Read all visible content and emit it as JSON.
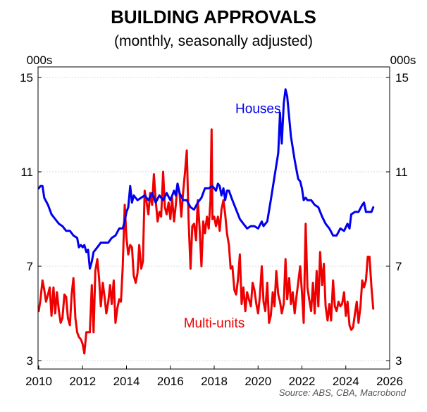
{
  "chart_data": {
    "type": "line",
    "title": "BUILDING APPROVALS",
    "subtitle": "(monthly, seasonally adjusted)",
    "ylabel_left": "000s",
    "ylabel_right": "000s",
    "source": "Source: ABS, CBA, Macrobond",
    "xlim": [
      2010,
      2026
    ],
    "ylim": [
      3,
      15
    ],
    "x_ticks": [
      2010,
      2012,
      2014,
      2016,
      2018,
      2020,
      2022,
      2024,
      2026
    ],
    "y_ticks": [
      3,
      7,
      11,
      15
    ],
    "grid": true,
    "series": [
      {
        "name": "Houses",
        "color": "#0000ee",
        "points": [
          [
            2010.0,
            10.3
          ],
          [
            2010.08,
            10.4
          ],
          [
            2010.17,
            10.4
          ],
          [
            2010.25,
            9.9
          ],
          [
            2010.42,
            9.6
          ],
          [
            2010.58,
            9.2
          ],
          [
            2010.75,
            9.0
          ],
          [
            2010.92,
            8.8
          ],
          [
            2011.08,
            8.7
          ],
          [
            2011.25,
            8.5
          ],
          [
            2011.42,
            8.5
          ],
          [
            2011.58,
            8.3
          ],
          [
            2011.75,
            8.2
          ],
          [
            2011.83,
            7.8
          ],
          [
            2011.92,
            7.9
          ],
          [
            2012.0,
            7.8
          ],
          [
            2012.08,
            7.9
          ],
          [
            2012.17,
            7.6
          ],
          [
            2012.25,
            7.7
          ],
          [
            2012.33,
            6.9
          ],
          [
            2012.42,
            7.2
          ],
          [
            2012.5,
            7.6
          ],
          [
            2012.67,
            7.8
          ],
          [
            2012.83,
            8.0
          ],
          [
            2013.0,
            8.0
          ],
          [
            2013.17,
            8.0
          ],
          [
            2013.33,
            8.2
          ],
          [
            2013.5,
            8.3
          ],
          [
            2013.67,
            8.6
          ],
          [
            2013.83,
            8.6
          ],
          [
            2013.92,
            8.9
          ],
          [
            2014.0,
            9.3
          ],
          [
            2014.08,
            9.5
          ],
          [
            2014.17,
            10.4
          ],
          [
            2014.25,
            9.7
          ],
          [
            2014.33,
            10.0
          ],
          [
            2014.5,
            9.8
          ],
          [
            2014.67,
            9.9
          ],
          [
            2014.83,
            10.0
          ],
          [
            2015.0,
            9.8
          ],
          [
            2015.17,
            10.1
          ],
          [
            2015.33,
            9.7
          ],
          [
            2015.5,
            10.0
          ],
          [
            2015.67,
            9.8
          ],
          [
            2015.83,
            10.1
          ],
          [
            2016.0,
            9.8
          ],
          [
            2016.17,
            10.2
          ],
          [
            2016.25,
            10.0
          ],
          [
            2016.33,
            10.5
          ],
          [
            2016.42,
            10.1
          ],
          [
            2016.58,
            9.8
          ],
          [
            2016.75,
            9.8
          ],
          [
            2016.92,
            9.5
          ],
          [
            2017.08,
            9.4
          ],
          [
            2017.25,
            9.7
          ],
          [
            2017.42,
            9.9
          ],
          [
            2017.58,
            10.3
          ],
          [
            2017.75,
            10.3
          ],
          [
            2017.92,
            10.4
          ],
          [
            2018.08,
            10.2
          ],
          [
            2018.17,
            10.5
          ],
          [
            2018.25,
            10.4
          ],
          [
            2018.33,
            10.0
          ],
          [
            2018.42,
            10.3
          ],
          [
            2018.5,
            9.8
          ],
          [
            2018.58,
            10.2
          ],
          [
            2018.67,
            10.2
          ],
          [
            2018.83,
            9.8
          ],
          [
            2019.0,
            9.4
          ],
          [
            2019.17,
            9.0
          ],
          [
            2019.33,
            8.8
          ],
          [
            2019.5,
            8.6
          ],
          [
            2019.67,
            8.7
          ],
          [
            2019.83,
            8.7
          ],
          [
            2020.0,
            8.6
          ],
          [
            2020.17,
            8.9
          ],
          [
            2020.25,
            8.7
          ],
          [
            2020.42,
            8.9
          ],
          [
            2020.58,
            9.8
          ],
          [
            2020.75,
            10.8
          ],
          [
            2020.92,
            11.8
          ],
          [
            2021.0,
            13.5
          ],
          [
            2021.08,
            12.2
          ],
          [
            2021.17,
            13.9
          ],
          [
            2021.25,
            14.5
          ],
          [
            2021.33,
            14.2
          ],
          [
            2021.42,
            13.3
          ],
          [
            2021.5,
            12.5
          ],
          [
            2021.67,
            11.5
          ],
          [
            2021.83,
            10.7
          ],
          [
            2021.92,
            10.6
          ],
          [
            2022.0,
            10.3
          ],
          [
            2022.08,
            9.8
          ],
          [
            2022.17,
            9.9
          ],
          [
            2022.25,
            9.8
          ],
          [
            2022.42,
            9.8
          ],
          [
            2022.58,
            9.6
          ],
          [
            2022.75,
            9.5
          ],
          [
            2022.92,
            9.1
          ],
          [
            2023.08,
            8.8
          ],
          [
            2023.25,
            8.6
          ],
          [
            2023.42,
            8.3
          ],
          [
            2023.58,
            8.3
          ],
          [
            2023.75,
            8.6
          ],
          [
            2023.92,
            8.5
          ],
          [
            2024.08,
            8.8
          ],
          [
            2024.17,
            8.6
          ],
          [
            2024.25,
            9.2
          ],
          [
            2024.42,
            9.3
          ],
          [
            2024.58,
            9.3
          ],
          [
            2024.75,
            9.6
          ],
          [
            2024.83,
            9.7
          ],
          [
            2024.92,
            9.3
          ],
          [
            2025.08,
            9.3
          ],
          [
            2025.17,
            9.3
          ],
          [
            2025.25,
            9.5
          ]
        ]
      },
      {
        "name": "Multi-units",
        "color": "#ee0000",
        "points": [
          [
            2010.0,
            5.1
          ],
          [
            2010.08,
            5.6
          ],
          [
            2010.17,
            6.4
          ],
          [
            2010.25,
            6.0
          ],
          [
            2010.33,
            5.5
          ],
          [
            2010.42,
            5.8
          ],
          [
            2010.5,
            6.1
          ],
          [
            2010.58,
            4.9
          ],
          [
            2010.67,
            6.1
          ],
          [
            2010.75,
            5.0
          ],
          [
            2010.83,
            5.9
          ],
          [
            2010.92,
            5.1
          ],
          [
            2011.0,
            4.6
          ],
          [
            2011.08,
            4.8
          ],
          [
            2011.17,
            5.8
          ],
          [
            2011.25,
            5.7
          ],
          [
            2011.33,
            4.8
          ],
          [
            2011.42,
            4.5
          ],
          [
            2011.5,
            5.8
          ],
          [
            2011.58,
            6.5
          ],
          [
            2011.67,
            4.8
          ],
          [
            2011.75,
            4.2
          ],
          [
            2011.83,
            4.0
          ],
          [
            2011.92,
            3.9
          ],
          [
            2012.0,
            3.7
          ],
          [
            2012.08,
            3.3
          ],
          [
            2012.17,
            4.2
          ],
          [
            2012.25,
            4.2
          ],
          [
            2012.33,
            4.2
          ],
          [
            2012.42,
            6.2
          ],
          [
            2012.5,
            4.2
          ],
          [
            2012.58,
            6.8
          ],
          [
            2012.67,
            7.3
          ],
          [
            2012.75,
            6.5
          ],
          [
            2012.83,
            5.3
          ],
          [
            2012.92,
            6.3
          ],
          [
            2013.0,
            5.7
          ],
          [
            2013.08,
            5.0
          ],
          [
            2013.17,
            5.5
          ],
          [
            2013.25,
            6.2
          ],
          [
            2013.33,
            5.4
          ],
          [
            2013.42,
            6.4
          ],
          [
            2013.5,
            4.6
          ],
          [
            2013.58,
            5.2
          ],
          [
            2013.67,
            5.6
          ],
          [
            2013.75,
            5.5
          ],
          [
            2013.83,
            7.0
          ],
          [
            2013.92,
            9.6
          ],
          [
            2014.0,
            8.2
          ],
          [
            2014.08,
            7.5
          ],
          [
            2014.17,
            7.9
          ],
          [
            2014.25,
            7.8
          ],
          [
            2014.33,
            6.6
          ],
          [
            2014.42,
            6.3
          ],
          [
            2014.5,
            6.7
          ],
          [
            2014.58,
            7.9
          ],
          [
            2014.67,
            6.9
          ],
          [
            2014.75,
            7.2
          ],
          [
            2014.83,
            10.2
          ],
          [
            2014.92,
            9.7
          ],
          [
            2015.0,
            9.2
          ],
          [
            2015.08,
            10.1
          ],
          [
            2015.17,
            9.6
          ],
          [
            2015.25,
            10.9
          ],
          [
            2015.33,
            9.8
          ],
          [
            2015.42,
            8.9
          ],
          [
            2015.5,
            9.3
          ],
          [
            2015.58,
            9.1
          ],
          [
            2015.67,
            11.0
          ],
          [
            2015.75,
            9.5
          ],
          [
            2015.83,
            9.2
          ],
          [
            2015.92,
            9.7
          ],
          [
            2016.0,
            9.0
          ],
          [
            2016.08,
            9.9
          ],
          [
            2016.17,
            8.9
          ],
          [
            2016.25,
            9.6
          ],
          [
            2016.33,
            10.5
          ],
          [
            2016.42,
            10.1
          ],
          [
            2016.5,
            9.1
          ],
          [
            2016.58,
            10.1
          ],
          [
            2016.67,
            11.0
          ],
          [
            2016.75,
            11.9
          ],
          [
            2016.83,
            9.0
          ],
          [
            2016.92,
            6.9
          ],
          [
            2017.0,
            8.7
          ],
          [
            2017.08,
            8.8
          ],
          [
            2017.17,
            8.1
          ],
          [
            2017.25,
            9.8
          ],
          [
            2017.33,
            8.7
          ],
          [
            2017.42,
            7.0
          ],
          [
            2017.5,
            8.9
          ],
          [
            2017.58,
            8.4
          ],
          [
            2017.67,
            9.1
          ],
          [
            2017.75,
            8.6
          ],
          [
            2017.83,
            9.8
          ],
          [
            2017.88,
            12.8
          ],
          [
            2017.92,
            9.0
          ],
          [
            2018.0,
            9.1
          ],
          [
            2018.08,
            8.7
          ],
          [
            2018.17,
            9.1
          ],
          [
            2018.25,
            8.5
          ],
          [
            2018.33,
            9.4
          ],
          [
            2018.42,
            9.8
          ],
          [
            2018.5,
            9.2
          ],
          [
            2018.58,
            8.4
          ],
          [
            2018.67,
            7.9
          ],
          [
            2018.75,
            6.9
          ],
          [
            2018.83,
            7.0
          ],
          [
            2018.92,
            6.0
          ],
          [
            2019.0,
            5.8
          ],
          [
            2019.08,
            6.4
          ],
          [
            2019.17,
            7.5
          ],
          [
            2019.25,
            5.4
          ],
          [
            2019.33,
            6.1
          ],
          [
            2019.42,
            5.1
          ],
          [
            2019.5,
            5.9
          ],
          [
            2019.58,
            5.6
          ],
          [
            2019.67,
            5.3
          ],
          [
            2019.75,
            6.3
          ],
          [
            2019.83,
            6.0
          ],
          [
            2019.92,
            5.4
          ],
          [
            2020.0,
            5.0
          ],
          [
            2020.08,
            5.7
          ],
          [
            2020.17,
            7.0
          ],
          [
            2020.25,
            5.5
          ],
          [
            2020.33,
            5.1
          ],
          [
            2020.42,
            6.3
          ],
          [
            2020.5,
            4.6
          ],
          [
            2020.58,
            4.9
          ],
          [
            2020.67,
            5.9
          ],
          [
            2020.75,
            5.3
          ],
          [
            2020.83,
            6.8
          ],
          [
            2020.92,
            5.8
          ],
          [
            2021.0,
            5.5
          ],
          [
            2021.08,
            5.0
          ],
          [
            2021.17,
            5.4
          ],
          [
            2021.25,
            7.3
          ],
          [
            2021.33,
            5.6
          ],
          [
            2021.42,
            6.5
          ],
          [
            2021.5,
            5.4
          ],
          [
            2021.58,
            5.9
          ],
          [
            2021.67,
            5.0
          ],
          [
            2021.75,
            5.7
          ],
          [
            2021.83,
            6.3
          ],
          [
            2021.92,
            7.0
          ],
          [
            2022.0,
            5.9
          ],
          [
            2022.08,
            4.6
          ],
          [
            2022.17,
            8.8
          ],
          [
            2022.25,
            6.1
          ],
          [
            2022.33,
            5.6
          ],
          [
            2022.42,
            5.1
          ],
          [
            2022.5,
            6.3
          ],
          [
            2022.58,
            5.0
          ],
          [
            2022.67,
            6.8
          ],
          [
            2022.75,
            5.3
          ],
          [
            2022.83,
            7.6
          ],
          [
            2022.92,
            6.2
          ],
          [
            2023.0,
            7.1
          ],
          [
            2023.08,
            5.3
          ],
          [
            2023.17,
            4.7
          ],
          [
            2023.25,
            5.4
          ],
          [
            2023.33,
            4.7
          ],
          [
            2023.42,
            6.4
          ],
          [
            2023.5,
            5.3
          ],
          [
            2023.58,
            5.1
          ],
          [
            2023.67,
            5.5
          ],
          [
            2023.75,
            5.3
          ],
          [
            2023.83,
            5.4
          ],
          [
            2023.92,
            5.9
          ],
          [
            2024.0,
            4.9
          ],
          [
            2024.08,
            5.5
          ],
          [
            2024.17,
            4.5
          ],
          [
            2024.25,
            4.3
          ],
          [
            2024.33,
            4.4
          ],
          [
            2024.42,
            5.0
          ],
          [
            2024.5,
            5.5
          ],
          [
            2024.58,
            4.6
          ],
          [
            2024.67,
            5.3
          ],
          [
            2024.75,
            6.4
          ],
          [
            2024.83,
            6.1
          ],
          [
            2024.92,
            6.4
          ],
          [
            2025.0,
            7.4
          ],
          [
            2025.08,
            7.4
          ],
          [
            2025.17,
            6.1
          ],
          [
            2025.25,
            5.2
          ]
        ]
      }
    ],
    "annotations": [
      {
        "text": "Houses",
        "x": 2020.0,
        "y": 13.5,
        "color": "#0000ee"
      },
      {
        "text": "Multi-units",
        "x": 2018.0,
        "y": 4.4,
        "color": "#ee0000"
      }
    ]
  }
}
